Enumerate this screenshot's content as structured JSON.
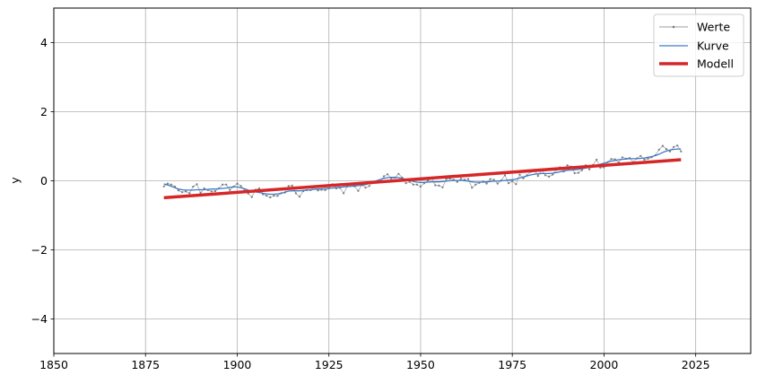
{
  "chart_data": {
    "type": "line",
    "title": "",
    "xlabel": "",
    "ylabel": "y",
    "xlim": [
      1850,
      2040
    ],
    "ylim": [
      -5,
      5
    ],
    "xticks": [
      1850,
      1875,
      1900,
      1925,
      1950,
      1975,
      2000,
      2025
    ],
    "yticks": [
      -4,
      -2,
      0,
      2,
      4
    ],
    "ytick_labels": [
      "−4",
      "−2",
      "0",
      "2",
      "4"
    ],
    "grid": true,
    "legend_position": "top-right",
    "series": [
      {
        "name": "Werte",
        "style": "thin line with small markers",
        "color": "#9e9e9e",
        "x": [
          1880,
          1881,
          1882,
          1883,
          1884,
          1885,
          1886,
          1887,
          1888,
          1889,
          1890,
          1891,
          1892,
          1893,
          1894,
          1895,
          1896,
          1897,
          1898,
          1899,
          1900,
          1901,
          1902,
          1903,
          1904,
          1905,
          1906,
          1907,
          1908,
          1909,
          1910,
          1911,
          1912,
          1913,
          1914,
          1915,
          1916,
          1917,
          1918,
          1919,
          1920,
          1921,
          1922,
          1923,
          1924,
          1925,
          1926,
          1927,
          1928,
          1929,
          1930,
          1931,
          1932,
          1933,
          1934,
          1935,
          1936,
          1937,
          1938,
          1939,
          1940,
          1941,
          1942,
          1943,
          1944,
          1945,
          1946,
          1947,
          1948,
          1949,
          1950,
          1951,
          1952,
          1953,
          1954,
          1955,
          1956,
          1957,
          1958,
          1959,
          1960,
          1961,
          1962,
          1963,
          1964,
          1965,
          1966,
          1967,
          1968,
          1969,
          1970,
          1971,
          1972,
          1973,
          1974,
          1975,
          1976,
          1977,
          1978,
          1979,
          1980,
          1981,
          1982,
          1983,
          1984,
          1985,
          1986,
          1987,
          1988,
          1989,
          1990,
          1991,
          1992,
          1993,
          1994,
          1995,
          1996,
          1997,
          1998,
          1999,
          2000,
          2001,
          2002,
          2003,
          2004,
          2005,
          2006,
          2007,
          2008,
          2009,
          2010,
          2011,
          2012,
          2013,
          2014,
          2015,
          2016,
          2017,
          2018,
          2019,
          2020,
          2021
        ],
        "y": [
          -0.16,
          -0.08,
          -0.11,
          -0.17,
          -0.28,
          -0.33,
          -0.31,
          -0.36,
          -0.17,
          -0.1,
          -0.35,
          -0.22,
          -0.27,
          -0.31,
          -0.3,
          -0.22,
          -0.11,
          -0.11,
          -0.27,
          -0.17,
          -0.08,
          -0.15,
          -0.28,
          -0.37,
          -0.47,
          -0.26,
          -0.22,
          -0.39,
          -0.43,
          -0.48,
          -0.43,
          -0.44,
          -0.36,
          -0.34,
          -0.15,
          -0.14,
          -0.36,
          -0.46,
          -0.3,
          -0.27,
          -0.27,
          -0.19,
          -0.28,
          -0.26,
          -0.27,
          -0.22,
          -0.1,
          -0.22,
          -0.2,
          -0.36,
          -0.16,
          -0.1,
          -0.16,
          -0.29,
          -0.12,
          -0.2,
          -0.15,
          -0.03,
          -0.01,
          -0.02,
          0.13,
          0.19,
          0.07,
          0.09,
          0.2,
          0.09,
          -0.07,
          -0.03,
          -0.11,
          -0.11,
          -0.17,
          -0.07,
          0.01,
          0.08,
          -0.13,
          -0.14,
          -0.19,
          0.05,
          0.06,
          0.03,
          -0.03,
          0.06,
          0.03,
          0.05,
          -0.2,
          -0.11,
          -0.06,
          -0.02,
          -0.08,
          0.05,
          0.03,
          -0.08,
          0.01,
          0.16,
          -0.07,
          -0.01,
          -0.1,
          0.18,
          0.07,
          0.16,
          0.26,
          0.32,
          0.14,
          0.31,
          0.16,
          0.12,
          0.18,
          0.32,
          0.39,
          0.27,
          0.45,
          0.41,
          0.22,
          0.23,
          0.31,
          0.45,
          0.33,
          0.46,
          0.61,
          0.38,
          0.39,
          0.54,
          0.63,
          0.62,
          0.53,
          0.68,
          0.64,
          0.66,
          0.54,
          0.65,
          0.72,
          0.61,
          0.64,
          0.68,
          0.74,
          0.9,
          1.01,
          0.92,
          0.85,
          0.98,
          1.02,
          0.85
        ]
      },
      {
        "name": "Kurve",
        "style": "smoothed line",
        "color": "#3d7cc9",
        "x": [
          1880,
          1881,
          1882,
          1883,
          1884,
          1885,
          1886,
          1887,
          1888,
          1889,
          1890,
          1891,
          1892,
          1893,
          1894,
          1895,
          1896,
          1897,
          1898,
          1899,
          1900,
          1901,
          1902,
          1903,
          1904,
          1905,
          1906,
          1907,
          1908,
          1909,
          1910,
          1911,
          1912,
          1913,
          1914,
          1915,
          1916,
          1917,
          1918,
          1919,
          1920,
          1921,
          1922,
          1923,
          1924,
          1925,
          1926,
          1927,
          1928,
          1929,
          1930,
          1931,
          1932,
          1933,
          1934,
          1935,
          1936,
          1937,
          1938,
          1939,
          1940,
          1941,
          1942,
          1943,
          1944,
          1945,
          1946,
          1947,
          1948,
          1949,
          1950,
          1951,
          1952,
          1953,
          1954,
          1955,
          1956,
          1957,
          1958,
          1959,
          1960,
          1961,
          1962,
          1963,
          1964,
          1965,
          1966,
          1967,
          1968,
          1969,
          1970,
          1971,
          1972,
          1973,
          1974,
          1975,
          1976,
          1977,
          1978,
          1979,
          1980,
          1981,
          1982,
          1983,
          1984,
          1985,
          1986,
          1987,
          1988,
          1989,
          1990,
          1991,
          1992,
          1993,
          1994,
          1995,
          1996,
          1997,
          1998,
          1999,
          2000,
          2001,
          2002,
          2003,
          2004,
          2005,
          2006,
          2007,
          2008,
          2009,
          2010,
          2011,
          2012,
          2013,
          2014,
          2015,
          2016,
          2017,
          2018,
          2019,
          2020,
          2021
        ],
        "y": [
          -0.09,
          -0.12,
          -0.16,
          -0.2,
          -0.24,
          -0.26,
          -0.27,
          -0.27,
          -0.27,
          -0.26,
          -0.26,
          -0.26,
          -0.25,
          -0.24,
          -0.24,
          -0.23,
          -0.22,
          -0.21,
          -0.19,
          -0.18,
          -0.18,
          -0.2,
          -0.23,
          -0.27,
          -0.3,
          -0.32,
          -0.34,
          -0.36,
          -0.38,
          -0.39,
          -0.39,
          -0.38,
          -0.36,
          -0.33,
          -0.3,
          -0.29,
          -0.29,
          -0.29,
          -0.28,
          -0.27,
          -0.26,
          -0.25,
          -0.24,
          -0.23,
          -0.22,
          -0.21,
          -0.21,
          -0.2,
          -0.19,
          -0.18,
          -0.17,
          -0.16,
          -0.15,
          -0.14,
          -0.13,
          -0.11,
          -0.08,
          -0.04,
          0.0,
          0.04,
          0.07,
          0.09,
          0.1,
          0.1,
          0.09,
          0.07,
          0.04,
          0.01,
          -0.02,
          -0.04,
          -0.05,
          -0.05,
          -0.04,
          -0.03,
          -0.03,
          -0.03,
          -0.02,
          -0.01,
          0.0,
          0.01,
          0.01,
          0.01,
          0.0,
          -0.01,
          -0.03,
          -0.04,
          -0.04,
          -0.04,
          -0.03,
          -0.02,
          -0.01,
          -0.01,
          0.0,
          0.01,
          0.02,
          0.03,
          0.05,
          0.08,
          0.11,
          0.14,
          0.17,
          0.19,
          0.2,
          0.21,
          0.21,
          0.21,
          0.22,
          0.24,
          0.26,
          0.28,
          0.3,
          0.31,
          0.32,
          0.33,
          0.35,
          0.37,
          0.39,
          0.42,
          0.45,
          0.48,
          0.51,
          0.54,
          0.57,
          0.59,
          0.61,
          0.62,
          0.63,
          0.64,
          0.64,
          0.64,
          0.65,
          0.66,
          0.68,
          0.7,
          0.73,
          0.77,
          0.82,
          0.86,
          0.89,
          0.91,
          0.92,
          0.92
        ]
      },
      {
        "name": "Modell",
        "style": "thick straight line",
        "color": "#d62728",
        "x": [
          1880,
          2021
        ],
        "y": [
          -0.49,
          0.61
        ]
      }
    ]
  }
}
